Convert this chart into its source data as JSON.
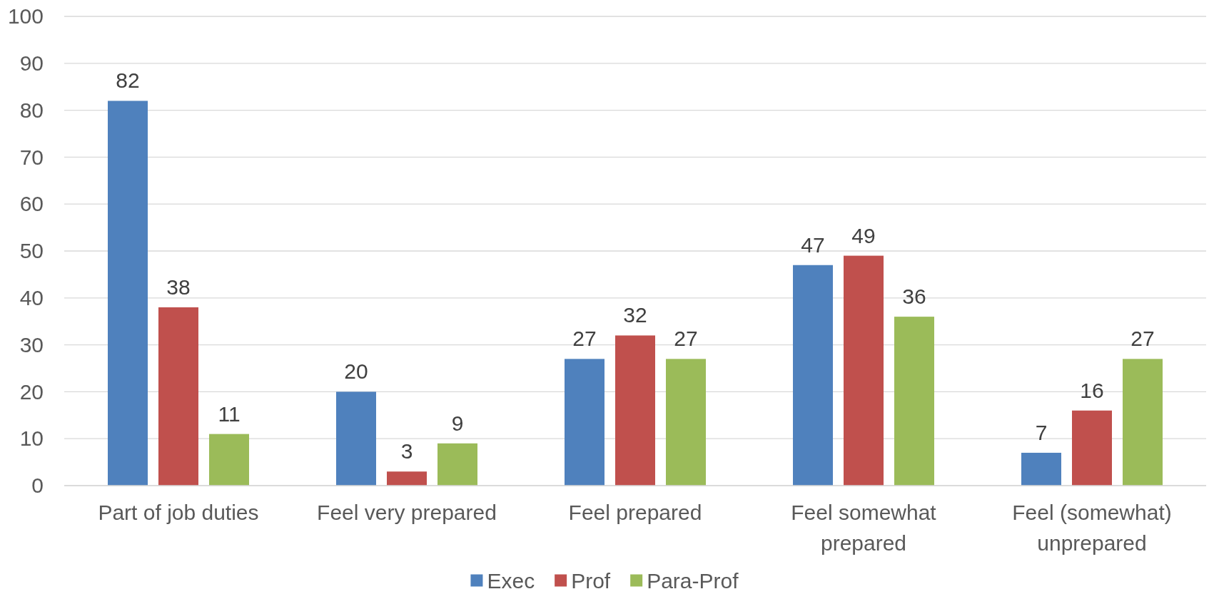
{
  "chart_data": {
    "type": "bar",
    "categories": [
      "Part of job duties",
      "Feel very prepared",
      "Feel prepared",
      "Feel somewhat prepared",
      "Feel (somewhat) unprepared"
    ],
    "series": [
      {
        "name": "Exec",
        "color": "#4f81bd",
        "values": [
          82,
          20,
          27,
          47,
          7
        ]
      },
      {
        "name": "Prof",
        "color": "#c0504d",
        "values": [
          38,
          3,
          32,
          49,
          16
        ]
      },
      {
        "name": "Para-Prof",
        "color": "#9bbb59",
        "values": [
          11,
          9,
          27,
          36,
          27
        ]
      }
    ],
    "ylim": [
      0,
      100
    ],
    "yticks": [
      0,
      10,
      20,
      30,
      40,
      50,
      60,
      70,
      80,
      90,
      100
    ],
    "grid": "y",
    "legend": "bottom",
    "data_labels": true
  }
}
